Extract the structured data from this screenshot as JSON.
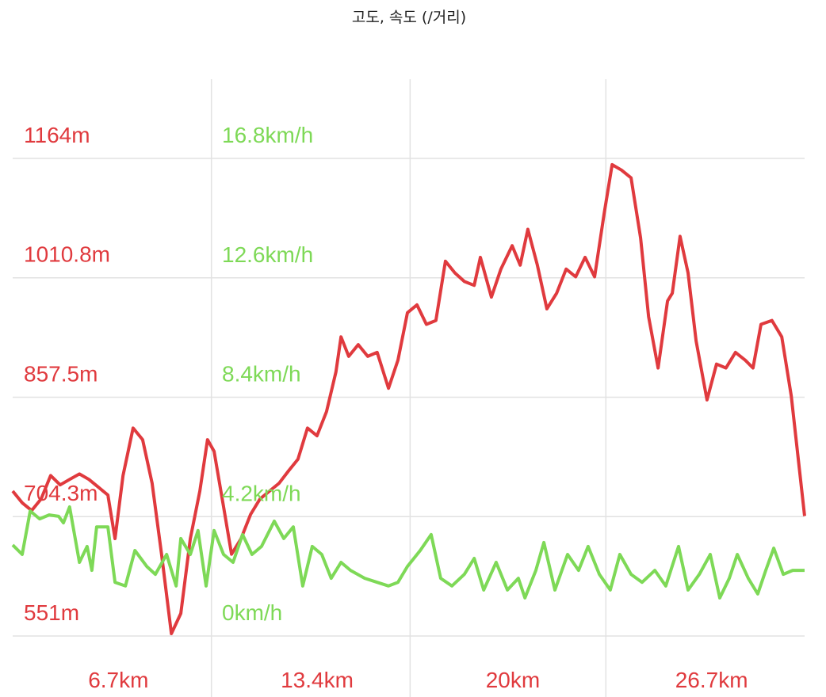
{
  "chart_data": {
    "type": "line",
    "title": "고도, 속도 (/거리)",
    "xlim": [
      0,
      26.7
    ],
    "xticks": [
      {
        "value": 6.7,
        "label": "6.7km"
      },
      {
        "value": 13.4,
        "label": "13.4km"
      },
      {
        "value": 20,
        "label": "20km"
      },
      {
        "value": 26.7,
        "label": "26.7km"
      }
    ],
    "ylim": [
      551,
      1164
    ],
    "yticks": [
      {
        "value": 551,
        "label": "551m"
      },
      {
        "value": 704.3,
        "label": "704.3m"
      },
      {
        "value": 857.5,
        "label": "857.5m"
      },
      {
        "value": 1010.8,
        "label": "1010.8m"
      },
      {
        "value": 1164,
        "label": "1164m"
      }
    ],
    "y2lim": [
      0,
      16.8
    ],
    "y2ticks": [
      {
        "value": 0,
        "label": "0km/h"
      },
      {
        "value": 4.2,
        "label": "4.2km/h"
      },
      {
        "value": 8.4,
        "label": "8.4km/h"
      },
      {
        "value": 12.6,
        "label": "12.6km/h"
      },
      {
        "value": 16.8,
        "label": "16.8km/h"
      }
    ],
    "grid": true,
    "series": [
      {
        "color": "#e03a3e",
        "x": [
          0,
          0.32,
          0.64,
          0.96,
          1.28,
          1.6,
          1.92,
          2.25,
          2.57,
          2.89,
          3.21,
          3.45,
          3.72,
          4.06,
          4.38,
          4.7,
          5.02,
          5.35,
          5.67,
          5.99,
          6.31,
          6.57,
          6.79,
          7.11,
          7.38,
          7.7,
          8.02,
          8.34,
          8.66,
          8.98,
          9.3,
          9.62,
          9.94,
          10.26,
          10.58,
          10.9,
          11.07,
          11.33,
          11.65,
          11.97,
          12.29,
          12.67,
          12.99,
          13.31,
          13.63,
          13.95,
          14.27,
          14.59,
          14.91,
          15.23,
          15.56,
          15.77,
          16.14,
          16.46,
          16.84,
          17.11,
          17.37,
          17.69,
          18.01,
          18.34,
          18.66,
          18.98,
          19.3,
          19.62,
          19.94,
          20.21,
          20.53,
          20.85,
          21.17,
          21.44,
          21.76,
          22.08,
          22.24,
          22.5,
          22.77,
          23.04,
          23.41,
          23.73,
          24.05,
          24.37,
          24.7,
          24.96,
          25.23,
          25.6,
          25.93,
          26.25,
          26.7
        ],
        "values": [
          737,
          722,
          712,
          727,
          757,
          745,
          752,
          759,
          752,
          742,
          732,
          676,
          757,
          818,
          803,
          747,
          656,
          554,
          580,
          676,
          737,
          803,
          788,
          717,
          656,
          676,
          707,
          727,
          737,
          747,
          763,
          778,
          818,
          808,
          839,
          890,
          935,
          910,
          925,
          910,
          915,
          869,
          905,
          966,
          976,
          951,
          956,
          1032,
          1017,
          1006,
          1001,
          1037,
          986,
          1022,
          1052,
          1027,
          1073,
          1027,
          971,
          991,
          1022,
          1012,
          1037,
          1012,
          1093,
          1156,
          1149,
          1139,
          1062,
          961,
          895,
          981,
          991,
          1064,
          1017,
          930,
          854,
          900,
          895,
          915,
          905,
          895,
          951,
          956,
          935,
          859,
          705
        ]
      },
      {
        "color": "#7ed957",
        "axis": "y2",
        "x": [
          0,
          0.32,
          0.59,
          0.91,
          1.23,
          1.55,
          1.71,
          1.92,
          2.25,
          2.51,
          2.67,
          2.83,
          3.21,
          3.45,
          3.8,
          4.12,
          4.52,
          4.81,
          5.19,
          5.51,
          5.67,
          5.99,
          6.25,
          6.52,
          6.79,
          7.11,
          7.43,
          7.75,
          8.07,
          8.39,
          8.82,
          9.14,
          9.46,
          9.78,
          10.1,
          10.42,
          10.74,
          11.07,
          11.39,
          11.87,
          12.29,
          12.67,
          12.99,
          13.31,
          13.74,
          14.11,
          14.43,
          14.81,
          15.23,
          15.56,
          15.88,
          16.3,
          16.68,
          17.05,
          17.27,
          17.64,
          17.91,
          18.28,
          18.71,
          19.08,
          19.4,
          19.78,
          20.15,
          20.47,
          20.85,
          21.22,
          21.65,
          22.02,
          22.45,
          22.77,
          23.15,
          23.52,
          23.84,
          24.16,
          24.43,
          24.8,
          25.12,
          25.39,
          25.66,
          25.98,
          26.3,
          26.7
        ],
        "values": [
          3.2,
          2.87,
          4.4,
          4.12,
          4.26,
          4.21,
          3.98,
          4.54,
          2.59,
          3.15,
          2.31,
          3.84,
          3.84,
          1.89,
          1.76,
          3.01,
          2.45,
          2.17,
          2.87,
          1.76,
          3.43,
          2.87,
          3.71,
          1.76,
          3.71,
          2.87,
          2.59,
          3.57,
          2.87,
          3.15,
          4.04,
          3.43,
          3.84,
          1.76,
          3.15,
          2.87,
          2.03,
          2.59,
          2.31,
          2.03,
          1.89,
          1.76,
          1.89,
          2.45,
          3.01,
          3.57,
          2.03,
          1.76,
          2.17,
          2.73,
          1.62,
          2.59,
          1.62,
          2.03,
          1.34,
          2.31,
          3.29,
          1.62,
          2.87,
          2.31,
          3.15,
          2.17,
          1.62,
          2.87,
          2.17,
          1.89,
          2.31,
          1.76,
          3.15,
          1.62,
          2.17,
          2.87,
          1.34,
          2.03,
          2.87,
          2.03,
          1.48,
          2.31,
          3.09,
          2.17,
          2.31,
          2.31
        ]
      }
    ]
  }
}
